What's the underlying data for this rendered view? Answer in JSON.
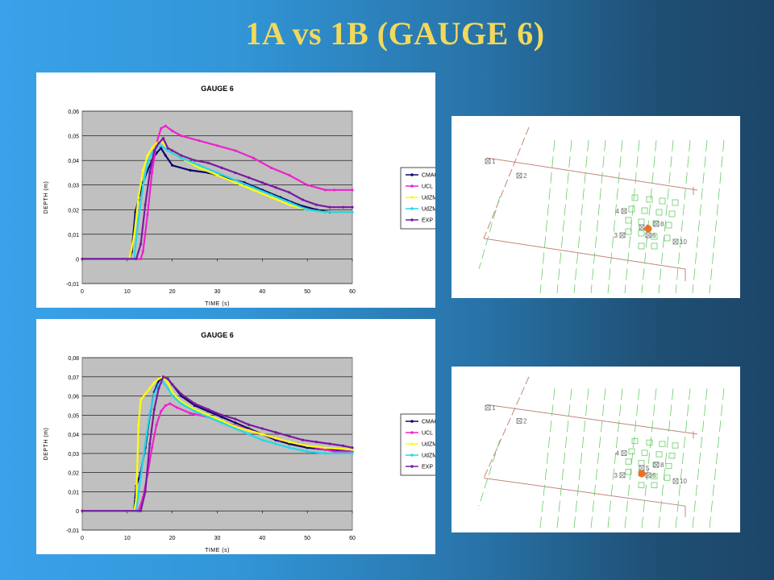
{
  "slide": {
    "title": "1A vs 1B   (GAUGE 6)"
  },
  "colors": {
    "CMAGREF": "#0b0b6b",
    "UCL": "#ee22cc",
    "UdZMULET": "#ffff00",
    "UdZMURILLO": "#22d8e8",
    "EXP": "#7a1aa0",
    "plot_bg": "#c0c0c0",
    "gauge_marker": "#f07020"
  },
  "chart_data": [
    {
      "type": "line",
      "title": "GAUGE 6",
      "xlabel": "TIME (s)",
      "ylabel": "DEPTH (m)",
      "xlim": [
        0,
        60
      ],
      "ylim": [
        -0.01,
        0.06
      ],
      "xticks": [
        "0",
        "10",
        "20",
        "30",
        "40",
        "50",
        "60"
      ],
      "yticks": [
        "-0,01",
        "0",
        "0,01",
        "0,02",
        "0,03",
        "0,04",
        "0,05",
        "0,06"
      ],
      "grid": true,
      "legend": "right",
      "series": [
        {
          "name": "CMAGREF",
          "x": [
            0,
            10.5,
            11,
            11.8,
            12.5,
            13.5,
            14.5,
            15.5,
            16.5,
            17.5,
            18.5,
            20,
            24,
            28,
            32,
            36,
            40,
            44,
            48,
            52,
            55,
            60
          ],
          "y": [
            0,
            0,
            0.003,
            0.019,
            0.024,
            0.031,
            0.036,
            0.04,
            0.043,
            0.045,
            0.042,
            0.038,
            0.036,
            0.035,
            0.033,
            0.031,
            0.028,
            0.025,
            0.022,
            0.02,
            0.019,
            0.019
          ]
        },
        {
          "name": "UCL",
          "x": [
            0,
            13,
            13.5,
            14.5,
            15.5,
            16.5,
            17.5,
            18.5,
            20,
            22,
            26,
            30,
            34,
            38,
            42,
            46,
            50,
            54,
            56,
            60
          ],
          "y": [
            0,
            0,
            0.003,
            0.018,
            0.035,
            0.047,
            0.053,
            0.054,
            0.052,
            0.05,
            0.048,
            0.046,
            0.044,
            0.041,
            0.037,
            0.034,
            0.03,
            0.028,
            0.028,
            0.028
          ]
        },
        {
          "name": "UdZMULET",
          "x": [
            0,
            10.5,
            11.5,
            12.5,
            13.5,
            14.5,
            15.5,
            16.5,
            17.5,
            19,
            22,
            26,
            30,
            34,
            38,
            42,
            46,
            50,
            54,
            60
          ],
          "y": [
            0,
            0,
            0.009,
            0.025,
            0.036,
            0.042,
            0.045,
            0.047,
            0.048,
            0.045,
            0.041,
            0.037,
            0.034,
            0.031,
            0.028,
            0.025,
            0.022,
            0.02,
            0.019,
            0.019
          ]
        },
        {
          "name": "UdZMURILLO",
          "x": [
            0,
            11.5,
            12.5,
            13.5,
            14.5,
            15.5,
            16.5,
            17.5,
            19,
            22,
            26,
            30,
            34,
            38,
            42,
            46,
            50,
            54,
            60
          ],
          "y": [
            0,
            0,
            0.016,
            0.03,
            0.039,
            0.043,
            0.045,
            0.046,
            0.044,
            0.041,
            0.038,
            0.035,
            0.032,
            0.029,
            0.026,
            0.023,
            0.02,
            0.019,
            0.019
          ]
        },
        {
          "name": "EXP",
          "x": [
            0,
            12,
            13,
            14,
            15,
            16,
            17,
            18,
            19,
            20,
            22,
            25,
            28,
            31,
            34,
            37,
            40,
            43,
            46,
            49,
            52,
            55,
            58,
            60
          ],
          "y": [
            0,
            0,
            0.006,
            0.022,
            0.035,
            0.044,
            0.047,
            0.049,
            0.045,
            0.044,
            0.042,
            0.04,
            0.039,
            0.037,
            0.035,
            0.033,
            0.031,
            0.029,
            0.027,
            0.024,
            0.022,
            0.021,
            0.021,
            0.021
          ]
        }
      ]
    },
    {
      "type": "line",
      "title": "GAUGE 6",
      "xlabel": "TIME (s)",
      "ylabel": "DEPTH (m)",
      "xlim": [
        0,
        60
      ],
      "ylim": [
        -0.01,
        0.08
      ],
      "xticks": [
        "0",
        "10",
        "20",
        "30",
        "40",
        "50",
        "60"
      ],
      "yticks": [
        "-0,01",
        "0",
        "0,01",
        "0,02",
        "0,03",
        "0,04",
        "0,05",
        "0,06",
        "0,07",
        "0,08"
      ],
      "grid": true,
      "legend": "right",
      "series": [
        {
          "name": "CMAGREF",
          "x": [
            0,
            11.5,
            12,
            13,
            14,
            15,
            16,
            17,
            18,
            19,
            20,
            22,
            25,
            28,
            31,
            34,
            37,
            40,
            43,
            46,
            50,
            54,
            60
          ],
          "y": [
            0,
            0,
            0.013,
            0.02,
            0.033,
            0.05,
            0.062,
            0.068,
            0.07,
            0.069,
            0.066,
            0.06,
            0.055,
            0.052,
            0.049,
            0.046,
            0.043,
            0.04,
            0.037,
            0.035,
            0.033,
            0.032,
            0.031
          ]
        },
        {
          "name": "UCL",
          "x": [
            0,
            12.5,
            13.5,
            14.5,
            15.5,
            16.5,
            17.5,
            18.5,
            19.5,
            21,
            24,
            28,
            32,
            36,
            40,
            44,
            48,
            52,
            56,
            60
          ],
          "y": [
            0,
            0,
            0.007,
            0.019,
            0.033,
            0.045,
            0.052,
            0.055,
            0.056,
            0.054,
            0.051,
            0.049,
            0.046,
            0.043,
            0.04,
            0.037,
            0.035,
            0.033,
            0.031,
            0.031
          ]
        },
        {
          "name": "UdZMULET",
          "x": [
            0,
            11.5,
            12,
            12.5,
            13,
            14,
            15,
            16,
            17,
            18,
            19,
            20,
            22,
            25,
            28,
            31,
            34,
            37,
            40,
            43,
            46,
            50,
            54,
            60
          ],
          "y": [
            0,
            0,
            0.006,
            0.045,
            0.058,
            0.061,
            0.064,
            0.067,
            0.069,
            0.07,
            0.067,
            0.062,
            0.057,
            0.053,
            0.05,
            0.047,
            0.044,
            0.042,
            0.04,
            0.038,
            0.036,
            0.034,
            0.033,
            0.032
          ]
        },
        {
          "name": "UdZMURILLO",
          "x": [
            0,
            12,
            13,
            14,
            15,
            16,
            17,
            18,
            19,
            20,
            22,
            25,
            28,
            31,
            34,
            37,
            40,
            43,
            46,
            50,
            54,
            60
          ],
          "y": [
            0,
            0,
            0.018,
            0.035,
            0.051,
            0.061,
            0.066,
            0.067,
            0.064,
            0.06,
            0.056,
            0.052,
            0.049,
            0.046,
            0.043,
            0.04,
            0.037,
            0.035,
            0.033,
            0.031,
            0.03,
            0.03
          ]
        },
        {
          "name": "EXP",
          "x": [
            0,
            13,
            14,
            15,
            16,
            17,
            18,
            19,
            20,
            22,
            25,
            28,
            31,
            34,
            37,
            40,
            43,
            46,
            49,
            52,
            55,
            58,
            60
          ],
          "y": [
            0,
            0,
            0.01,
            0.035,
            0.053,
            0.064,
            0.07,
            0.069,
            0.066,
            0.061,
            0.056,
            0.053,
            0.05,
            0.048,
            0.045,
            0.043,
            0.041,
            0.039,
            0.037,
            0.036,
            0.035,
            0.034,
            0.033
          ]
        }
      ]
    }
  ],
  "maps": [
    {
      "gauge_labels": [
        "1",
        "2",
        "3",
        "4",
        "5",
        "6",
        "8",
        "10"
      ]
    },
    {
      "gauge_labels": [
        "1",
        "2",
        "3",
        "4",
        "5",
        "6",
        "8",
        "10"
      ]
    }
  ]
}
